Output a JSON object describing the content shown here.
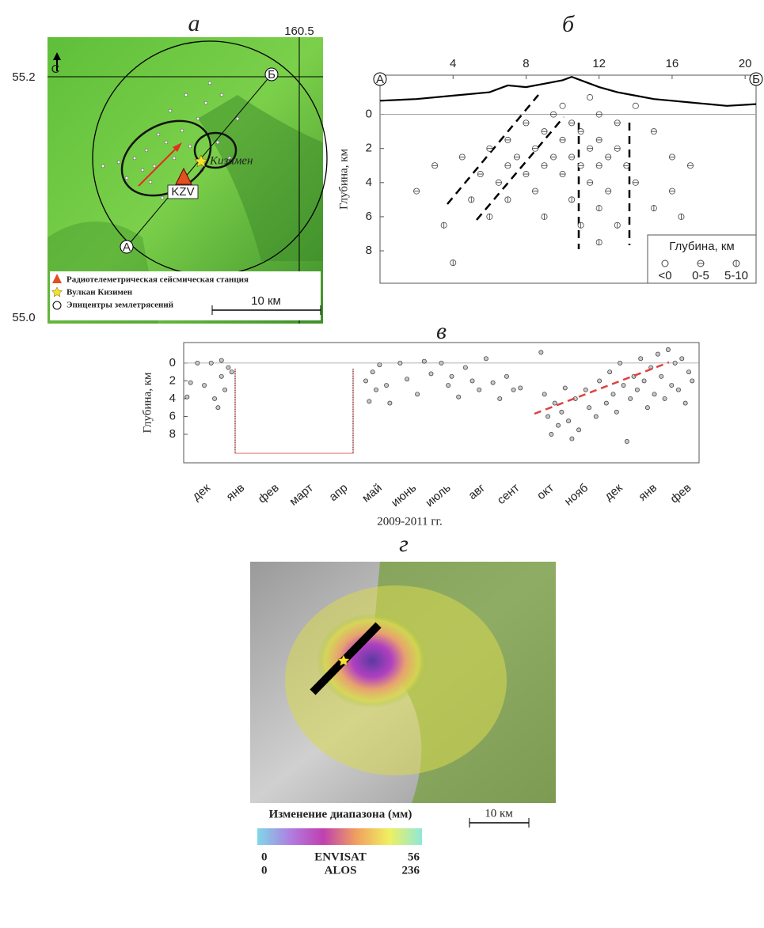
{
  "panel_a": {
    "title": "а",
    "lon_label": "160.5",
    "lat_top": "55.2",
    "lat_bottom": "55.0",
    "north": "С",
    "point_a": "А",
    "point_b": "Б",
    "station": "KZV",
    "volcano": "Кизимен",
    "legend": [
      "Радиотелеметрическая сейсмическая станция",
      "Вулкан Кизимен",
      "Эпицентры землетрясений"
    ],
    "scale": "10 км"
  },
  "chart_data": [
    {
      "type": "scatter",
      "title": "б",
      "y_label": "Глубина, км",
      "start_label": "А",
      "end_label": "Б",
      "xlim": [
        0,
        20.6
      ],
      "xticks": [
        4,
        8,
        12,
        16,
        20
      ],
      "ylim": [
        -2.3,
        9.9
      ],
      "yticks": [
        0,
        2,
        4,
        6,
        8
      ],
      "y_inverted": true,
      "profile_x": [
        0,
        2,
        4,
        6,
        7,
        8,
        9,
        10,
        10.5,
        11,
        12,
        13,
        14,
        15,
        16,
        17,
        18,
        19,
        20.6
      ],
      "profile_y": [
        -0.8,
        -0.9,
        -1.1,
        -1.3,
        -1.7,
        -1.6,
        -1.8,
        -2.0,
        -2.2,
        -2.0,
        -1.6,
        -1.3,
        -1.1,
        -0.9,
        -0.8,
        -0.7,
        -0.6,
        -0.5,
        -0.6
      ],
      "points_x": [
        2,
        3,
        3.5,
        4,
        4.5,
        5,
        5.5,
        6,
        6,
        6.5,
        7,
        7,
        7,
        7.5,
        8,
        8,
        8.5,
        8.5,
        9,
        9,
        9,
        9.5,
        9.5,
        10,
        10,
        10,
        10.5,
        10.5,
        10.5,
        11,
        11,
        11,
        11.5,
        11.5,
        11.5,
        12,
        12,
        12,
        12,
        12,
        12.5,
        12.5,
        13,
        13,
        13,
        13.5,
        14,
        14,
        15,
        15,
        16,
        16,
        17,
        16.5
      ],
      "points_y": [
        4.5,
        3,
        6.5,
        8.7,
        2.5,
        5,
        3.5,
        2,
        6,
        4,
        1.5,
        3,
        5,
        2.5,
        0.5,
        3.5,
        2,
        4.5,
        1,
        3,
        6,
        0,
        2.5,
        -0.5,
        1.5,
        3.5,
        0.5,
        2.5,
        5,
        1,
        3,
        6.5,
        -1,
        2,
        4,
        0,
        1.5,
        3,
        5.5,
        7.5,
        2.5,
        4.5,
        0.5,
        2,
        6.5,
        3,
        -0.5,
        4,
        1,
        5.5,
        2.5,
        4.5,
        3,
        6
      ],
      "legend": {
        "title": "Глубина, км",
        "entries": [
          "<0",
          "0-5",
          "5-10"
        ]
      }
    },
    {
      "type": "scatter",
      "title": "в",
      "y_label": "Глубина, км",
      "x_label": "2009-2011 гг.",
      "categories": [
        "дек",
        "янв",
        "фев",
        "март",
        "апр",
        "май",
        "июнь",
        "июль",
        "авг",
        "сент",
        "окт",
        "нояб",
        "дек",
        "янв",
        "фев"
      ],
      "xlim": [
        -0.5,
        14.5
      ],
      "ylim": [
        -2.3,
        11.2
      ],
      "yticks": [
        0,
        2,
        4,
        6,
        8
      ],
      "y_inverted": true,
      "points_x": [
        -0.4,
        -0.3,
        -0.1,
        0.1,
        0.3,
        0.4,
        0.5,
        0.6,
        0.7,
        0.8,
        0.9,
        0.6,
        4.8,
        4.9,
        5,
        5.1,
        5.2,
        5.4,
        5.5,
        5.8,
        6,
        6.3,
        6.5,
        6.7,
        7,
        7.2,
        7.3,
        7.5,
        7.7,
        7.9,
        8.1,
        8.3,
        8.5,
        8.7,
        8.9,
        9.1,
        9.3,
        9.9,
        10,
        10.1,
        10.2,
        10.3,
        10.4,
        10.5,
        10.6,
        10.7,
        10.8,
        10.9,
        11,
        11.2,
        11.3,
        11.5,
        11.6,
        11.8,
        11.9,
        12,
        12.1,
        12.2,
        12.3,
        12.4,
        12.5,
        12.6,
        12.7,
        12.8,
        12.9,
        13,
        13.1,
        13.2,
        13.3,
        13.4,
        13.5,
        13.6,
        13.7,
        13.8,
        13.9,
        14,
        14.1,
        14.2,
        14.3
      ],
      "points_y": [
        3.8,
        2.2,
        0,
        2.5,
        0,
        4,
        5,
        1.5,
        3,
        0.5,
        1,
        -0.3,
        2,
        4.3,
        1,
        3,
        0.2,
        2.5,
        4.5,
        0,
        1.8,
        3.5,
        -0.2,
        1.2,
        0,
        2.5,
        1.5,
        3.8,
        0.5,
        2,
        3,
        -0.5,
        2.2,
        4,
        1.5,
        3,
        2.8,
        -1.2,
        3.5,
        6,
        8,
        4.5,
        7,
        5.5,
        2.8,
        6.5,
        8.5,
        4,
        7.5,
        3,
        5,
        6,
        2,
        4.5,
        1,
        3.5,
        5.5,
        0,
        2.5,
        8.8,
        4,
        1.5,
        3,
        -0.5,
        2,
        5,
        0.5,
        3.5,
        -1,
        1.5,
        4,
        -1.5,
        2.5,
        0,
        3,
        -0.5,
        4.5,
        1,
        2
      ]
    }
  ],
  "panel_g": {
    "title": "г",
    "colorbar_title": "Изменение диапазона (мм)",
    "scale": "10 км",
    "rows": [
      [
        "0",
        "ENVISAT",
        "56"
      ],
      [
        "0",
        "ALOS",
        "236"
      ]
    ]
  }
}
